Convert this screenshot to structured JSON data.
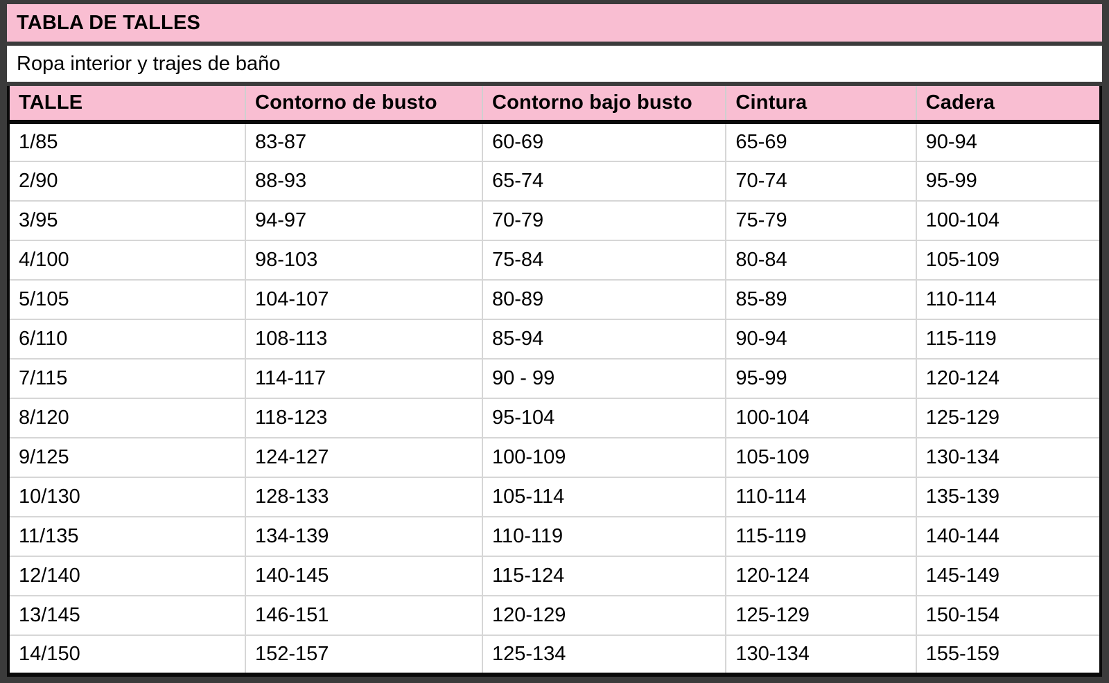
{
  "title": "TABLA DE TALLES",
  "subtitle": "Ropa interior y trajes de baño",
  "colors": {
    "header_pink": "#f9bed2",
    "frame_gray": "#3b3b3b",
    "grid_gray": "#d6d6d6",
    "rule_black": "#0a0a0a"
  },
  "table": {
    "columns": [
      "TALLE",
      "Contorno de busto",
      "Contorno bajo busto",
      "Cintura",
      "Cadera"
    ],
    "rows": [
      [
        "1/85",
        "83-87",
        "60-69",
        "65-69",
        "90-94"
      ],
      [
        "2/90",
        "88-93",
        "65-74",
        "70-74",
        "95-99"
      ],
      [
        "3/95",
        "94-97",
        "70-79",
        "75-79",
        "100-104"
      ],
      [
        "4/100",
        "98-103",
        "75-84",
        "80-84",
        "105-109"
      ],
      [
        "5/105",
        "104-107",
        "80-89",
        "85-89",
        "110-114"
      ],
      [
        "6/110",
        "108-113",
        "85-94",
        "90-94",
        "115-119"
      ],
      [
        "7/115",
        "114-117",
        "90 - 99",
        "95-99",
        "120-124"
      ],
      [
        "8/120",
        "118-123",
        "95-104",
        "100-104",
        "125-129"
      ],
      [
        "9/125",
        "124-127",
        "100-109",
        "105-109",
        "130-134"
      ],
      [
        "10/130",
        "128-133",
        "105-114",
        "110-114",
        "135-139"
      ],
      [
        "11/135",
        "134-139",
        "110-119",
        "115-119",
        "140-144"
      ],
      [
        "12/140",
        "140-145",
        "115-124",
        "120-124",
        "145-149"
      ],
      [
        "13/145",
        "146-151",
        "120-129",
        "125-129",
        "150-154"
      ],
      [
        "14/150",
        "152-157",
        "125-134",
        "130-134",
        "155-159"
      ]
    ]
  }
}
